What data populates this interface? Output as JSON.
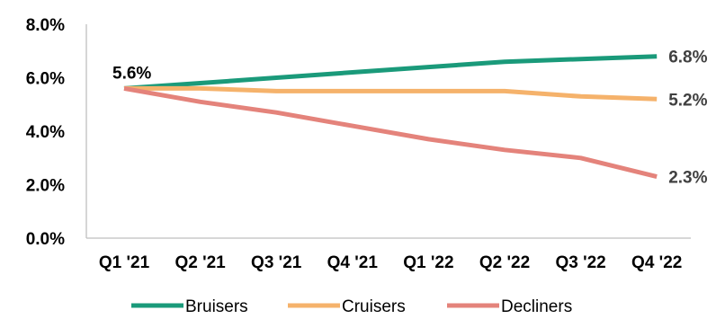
{
  "chart_data": {
    "type": "line",
    "title": "",
    "xlabel": "",
    "ylabel": "",
    "categories": [
      "Q1 '21",
      "Q2 '21",
      "Q3 '21",
      "Q4 '21",
      "Q1 '22",
      "Q2 '22",
      "Q3 '22",
      "Q4 '22"
    ],
    "ylim": [
      0,
      8
    ],
    "y_ticks": [
      0,
      2,
      4,
      6,
      8
    ],
    "y_tick_labels": [
      "0.0%",
      "2.0%",
      "4.0%",
      "6.0%",
      "8.0%"
    ],
    "y_format": "percent_1dp",
    "grid": false,
    "legend_position": "bottom",
    "series": [
      {
        "name": "Bruisers",
        "color": "#1a9a7a",
        "values": [
          5.6,
          5.8,
          6.0,
          6.2,
          6.4,
          6.6,
          6.7,
          6.8
        ],
        "end_label": "6.8%"
      },
      {
        "name": "Cruisers",
        "color": "#f5b26b",
        "values": [
          5.6,
          5.6,
          5.5,
          5.5,
          5.5,
          5.5,
          5.3,
          5.2
        ],
        "end_label": "5.2%"
      },
      {
        "name": "Decliners",
        "color": "#e4837b",
        "values": [
          5.6,
          5.1,
          4.7,
          4.2,
          3.7,
          3.3,
          3.0,
          2.3
        ],
        "end_label": "2.3%"
      }
    ],
    "start_label": "5.6%"
  }
}
